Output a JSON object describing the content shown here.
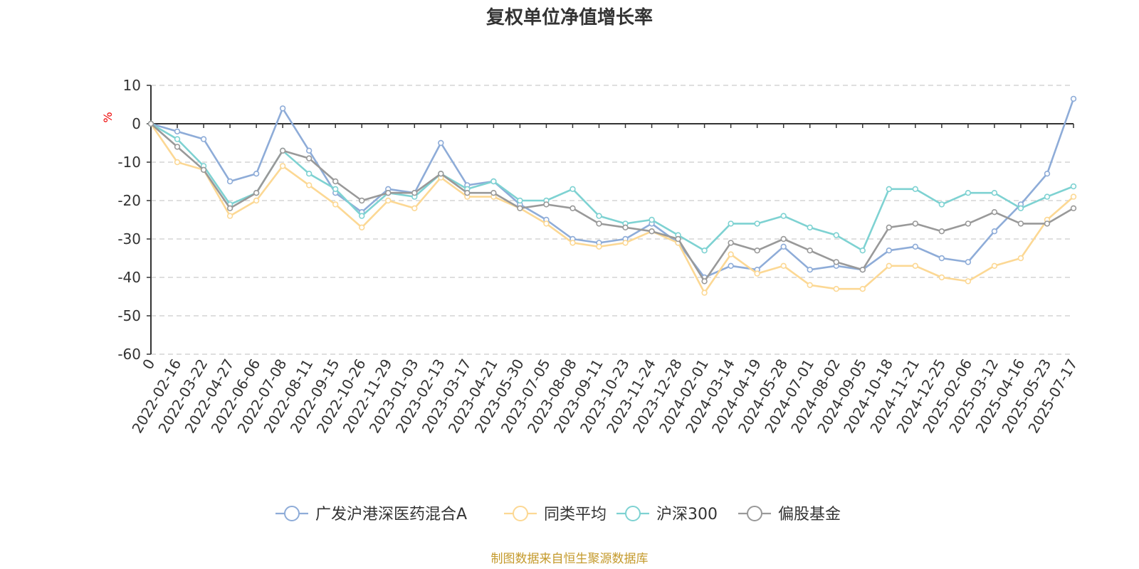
{
  "chart_data": {
    "type": "line",
    "title": "复权单位净值增长率",
    "ylabel": "%",
    "xlabel": "",
    "ylim": [
      -60,
      10
    ],
    "yticks": [
      10,
      0,
      -10,
      -20,
      -30,
      -40,
      -50,
      -60
    ],
    "grid": true,
    "legend_position": "bottom",
    "categories": [
      "0",
      "2022-02-16",
      "2022-03-22",
      "2022-04-27",
      "2022-06-06",
      "2022-07-08",
      "2022-08-11",
      "2022-09-15",
      "2022-10-26",
      "2022-11-29",
      "2023-01-03",
      "2023-02-13",
      "2023-03-17",
      "2023-04-21",
      "2023-05-30",
      "2023-07-05",
      "2023-08-08",
      "2023-09-11",
      "2023-10-23",
      "2023-11-24",
      "2023-12-28",
      "2024-02-01",
      "2024-03-14",
      "2024-04-19",
      "2024-05-28",
      "2024-07-01",
      "2024-08-02",
      "2024-09-05",
      "2024-10-18",
      "2024-11-21",
      "2024-12-25",
      "2025-02-06",
      "2025-03-12",
      "2025-04-16",
      "2025-05-23",
      "2025-07-17"
    ],
    "series": [
      {
        "name": "广发沪港深医药混合A",
        "color": "#8eacd8",
        "values": [
          0,
          -2,
          -4,
          -15,
          -13,
          4,
          -7,
          -18,
          -23,
          -17,
          -18,
          -5,
          -16,
          -15,
          -21,
          -25,
          -30,
          -31,
          -30,
          -26,
          -31,
          -40,
          -37,
          -38,
          -32,
          -38,
          -37,
          -38,
          -33,
          -32,
          -35,
          -36,
          -28,
          -21,
          -13,
          6.5
        ]
      },
      {
        "name": "同类平均",
        "color": "#fcd894",
        "values": [
          0,
          -10,
          -12,
          -24,
          -20,
          -11,
          -16,
          -21,
          -27,
          -20,
          -22,
          -14,
          -19,
          -19,
          -22,
          -26,
          -31,
          -32,
          -31,
          -28,
          -31,
          -44,
          -34,
          -39,
          -37,
          -42,
          -43,
          -43,
          -37,
          -37,
          -40,
          -41,
          -37,
          -35,
          -25,
          -19
        ]
      },
      {
        "name": "沪深300",
        "color": "#7ed2d2",
        "values": [
          0,
          -4,
          -11,
          -21,
          -18,
          -7,
          -13,
          -17,
          -24,
          -18,
          -19,
          -13,
          -17,
          -15,
          -20,
          -20,
          -17,
          -24,
          -26,
          -25,
          -29,
          -33,
          -26,
          -26,
          -24,
          -27,
          -29,
          -33,
          -17,
          -17,
          -21,
          -18,
          -18,
          -22,
          -19,
          -16.3
        ]
      },
      {
        "name": "偏股基金",
        "color": "#999999",
        "values": [
          0,
          -6,
          -12,
          -22,
          -18,
          -7,
          -9,
          -15,
          -20,
          -18,
          -18,
          -13,
          -18,
          -18,
          -22,
          -21,
          -22,
          -26,
          -27,
          -28,
          -30,
          -41,
          -31,
          -33,
          -30,
          -33,
          -36,
          -38,
          -27,
          -26,
          -28,
          -26,
          -23,
          -26,
          -26,
          -22
        ]
      }
    ]
  },
  "footer": {
    "source": "制图数据来自恒生聚源数据库"
  }
}
